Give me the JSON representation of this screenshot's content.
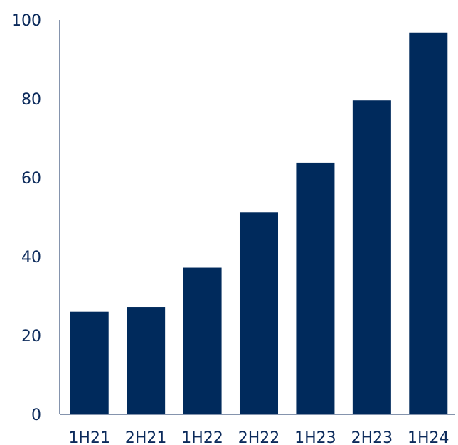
{
  "chart_data": {
    "type": "bar",
    "categories": [
      "1H21",
      "2H21",
      "1H22",
      "2H22",
      "1H23",
      "2H23",
      "1H24"
    ],
    "values": [
      26,
      27.2,
      37.2,
      51.3,
      63.8,
      79.6,
      96.8
    ],
    "title": "",
    "xlabel": "",
    "ylabel": "",
    "ylim": [
      0,
      100
    ],
    "yticks": [
      0,
      20,
      40,
      60,
      80,
      100
    ],
    "grid": false,
    "bar_color": "#002a5c",
    "axis_color": "#0b2a5b"
  }
}
